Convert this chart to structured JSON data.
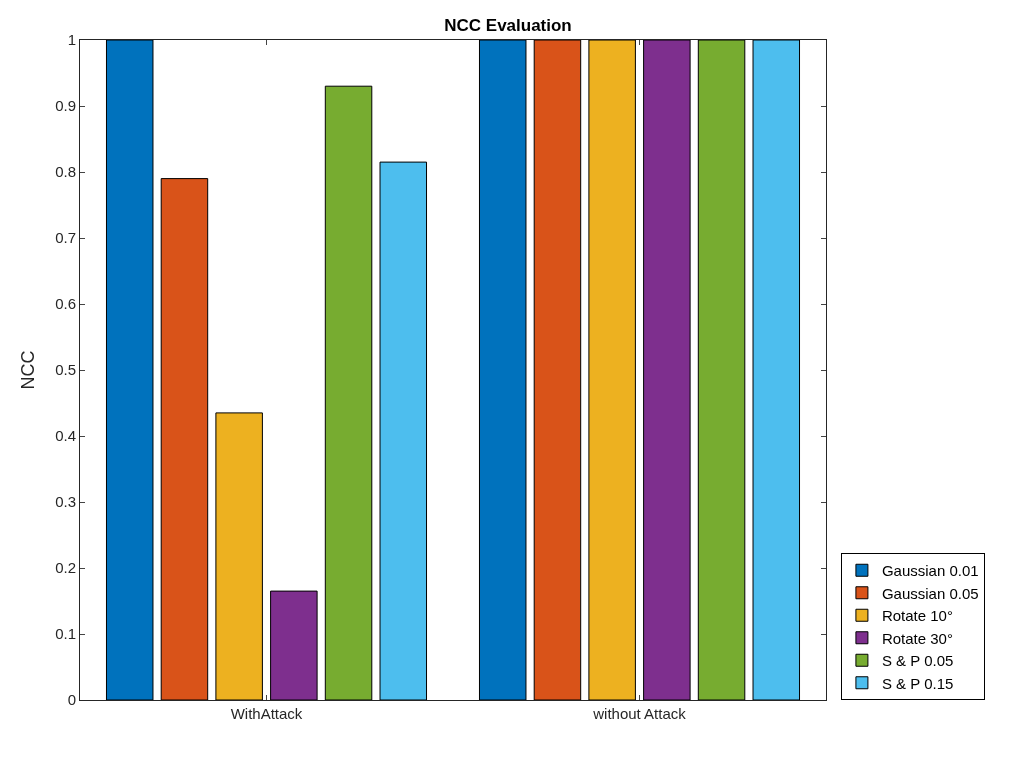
{
  "chart_data": {
    "type": "bar",
    "title": "NCC Evaluation",
    "ylabel": "NCC",
    "categories": [
      "WithAttack",
      "without Attack"
    ],
    "series": [
      {
        "name": "Gaussian 0.01",
        "color": "#0072bd",
        "values": [
          1,
          1
        ]
      },
      {
        "name": "Gaussian 0.05",
        "color": "#d95319",
        "values": [
          0.79,
          1
        ]
      },
      {
        "name": "Rotate 10°",
        "color": "#edb120",
        "values": [
          0.435,
          1
        ]
      },
      {
        "name": "Rotate 30°",
        "color": "#7e2f8e",
        "values": [
          0.165,
          1
        ]
      },
      {
        "name": "S & P 0.05",
        "color": "#77ac30",
        "values": [
          0.93,
          1
        ]
      },
      {
        "name": "S & P 0.15",
        "color": "#4dbeee",
        "values": [
          0.815,
          1
        ]
      }
    ],
    "ylim": [
      0,
      1
    ],
    "yticks": [
      0,
      0.1,
      0.2,
      0.3,
      0.4,
      0.5,
      0.6,
      0.7,
      0.8,
      0.9,
      1
    ],
    "legend": "bottom right"
  }
}
